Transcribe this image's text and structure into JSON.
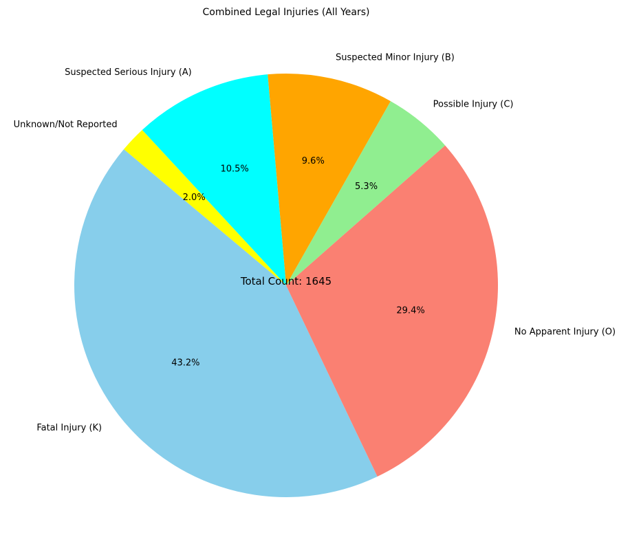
{
  "chart_data": {
    "type": "pie",
    "title": "Combined Legal Injuries (All Years)",
    "center_text": "Total Count: 1645",
    "slices": [
      {
        "label": "Fatal Injury (K)",
        "value": 43.2,
        "pct_label": "43.2%",
        "color": "#87CEEB"
      },
      {
        "label": "No Apparent Injury (O)",
        "value": 29.4,
        "pct_label": "29.4%",
        "color": "#FA8072"
      },
      {
        "label": "Possible Injury (C)",
        "value": 5.3,
        "pct_label": "5.3%",
        "color": "#90EE90"
      },
      {
        "label": "Suspected Minor Injury (B)",
        "value": 9.6,
        "pct_label": "9.6%",
        "color": "#FFA500"
      },
      {
        "label": "Suspected Serious Injury (A)",
        "value": 10.5,
        "pct_label": "10.5%",
        "color": "#00FFFF"
      },
      {
        "label": "Unknown/Not Reported",
        "value": 2.0,
        "pct_label": "2.0%",
        "color": "#FFFF00"
      }
    ]
  }
}
